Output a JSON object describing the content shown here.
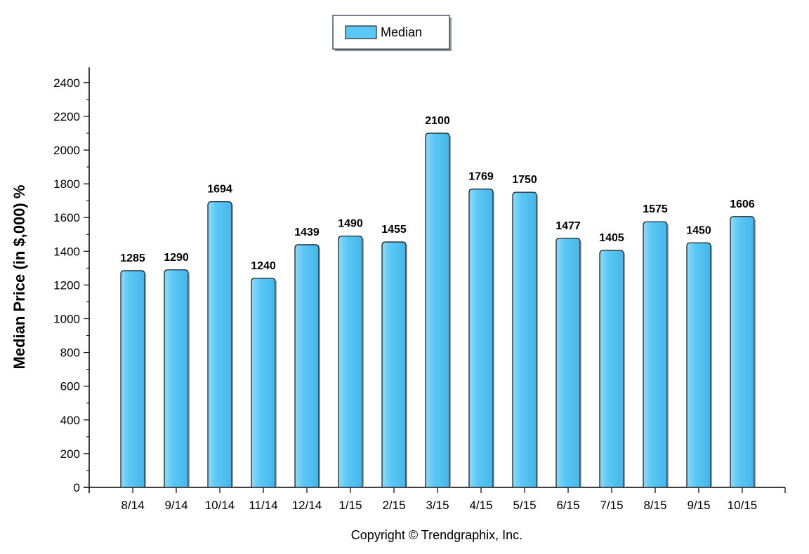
{
  "chart_data": {
    "type": "bar",
    "categories": [
      "8/14",
      "9/14",
      "10/14",
      "11/14",
      "12/14",
      "1/15",
      "2/15",
      "3/15",
      "4/15",
      "5/15",
      "6/15",
      "7/15",
      "8/15",
      "9/15",
      "10/15"
    ],
    "series": [
      {
        "name": "Median",
        "values": [
          1285,
          1290,
          1694,
          1240,
          1439,
          1490,
          1455,
          2100,
          1769,
          1750,
          1477,
          1405,
          1575,
          1450,
          1606
        ]
      }
    ],
    "title": "",
    "xlabel": "",
    "ylabel": "Median Price (in $,000) %",
    "ylim": [
      0,
      2500
    ],
    "yticks": [
      0,
      200,
      400,
      600,
      800,
      1000,
      1200,
      1400,
      1600,
      1800,
      2000,
      2200,
      2400
    ],
    "grid": false,
    "legend": "top-center",
    "data_labels": true,
    "bar_color": "#5bc8f5",
    "bar_edge_color": "#222222"
  },
  "footer": {
    "copyright": "Copyright © Trendgraphix, Inc."
  }
}
